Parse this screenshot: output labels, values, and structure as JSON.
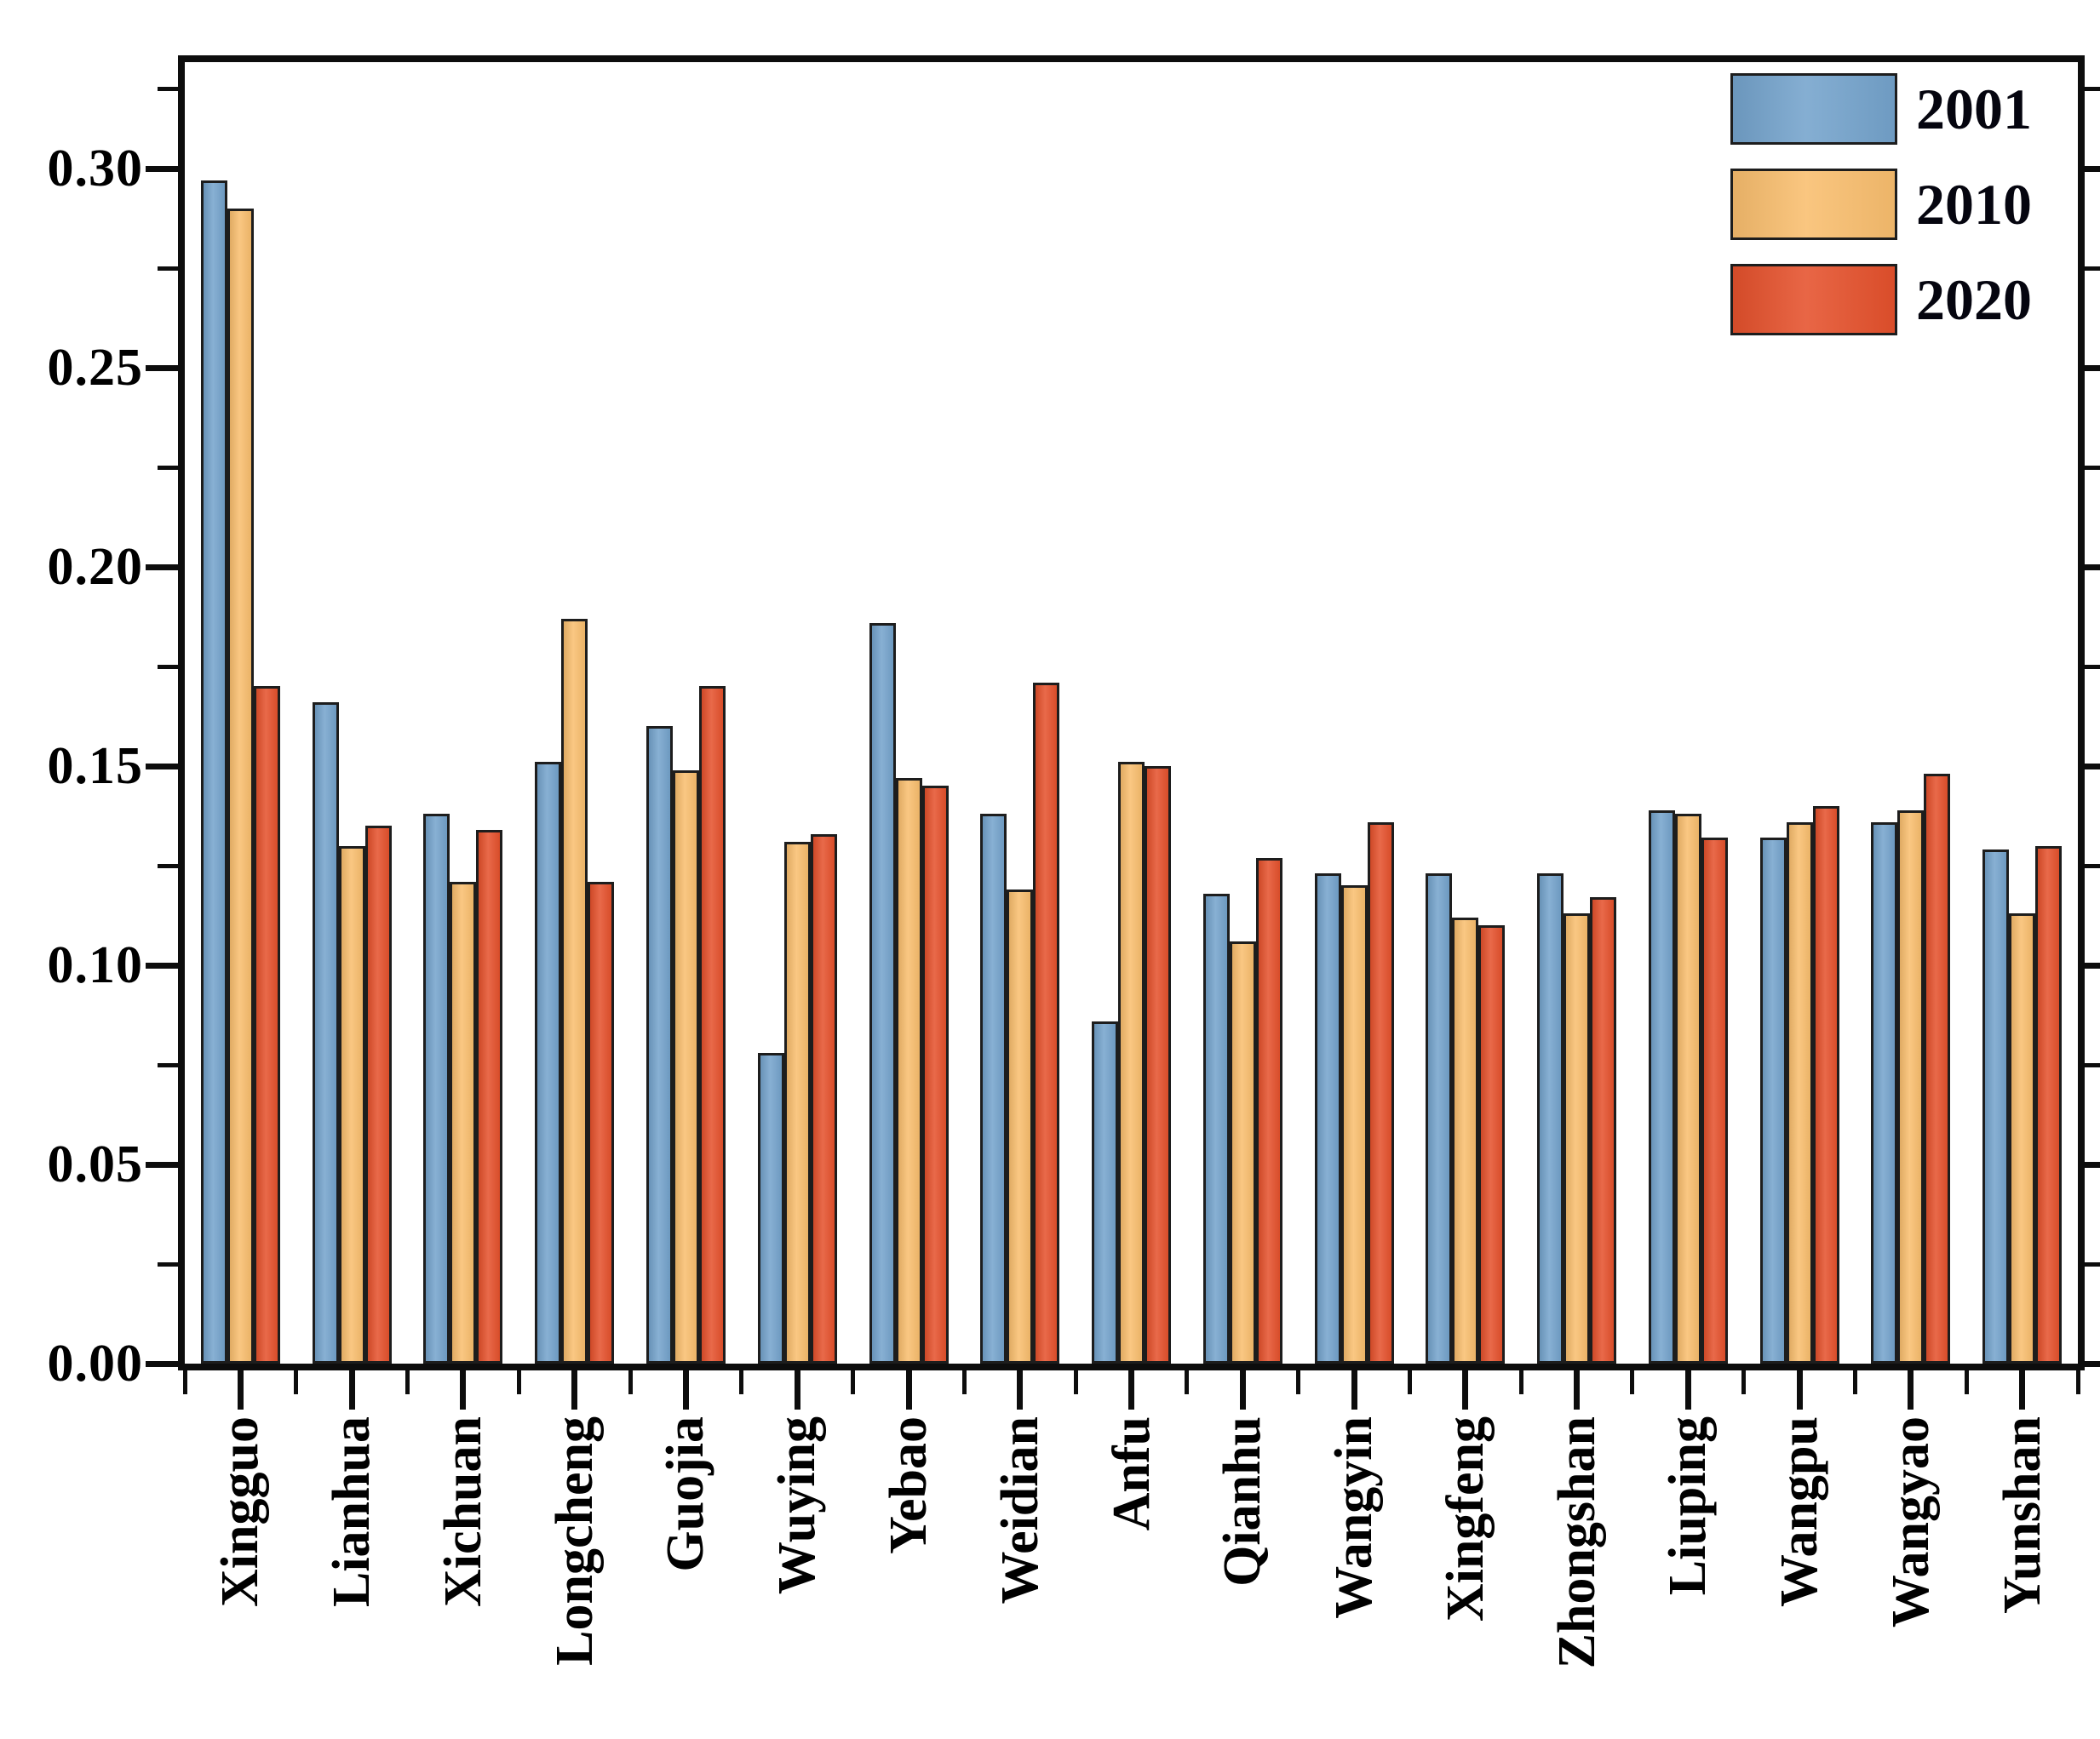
{
  "chart_data": {
    "type": "bar",
    "title": "",
    "xlabel": "",
    "ylabel": "",
    "categories": [
      "Xingguo",
      "Lianhua",
      "Xichuan",
      "Longcheng",
      "Guojia",
      "Wuying",
      "Yebao",
      "Weidian",
      "Anfu",
      "Qianhu",
      "Wangyin",
      "Xingfeng",
      "Zhongshan",
      "Liuping",
      "Wangpu",
      "Wangyao",
      "Yunshan"
    ],
    "series": [
      {
        "name": "2001",
        "color": "#74A3CC",
        "values": [
          0.297,
          0.166,
          0.138,
          0.151,
          0.16,
          0.078,
          0.186,
          0.138,
          0.086,
          0.118,
          0.123,
          0.123,
          0.123,
          0.139,
          0.132,
          0.136,
          0.129
        ]
      },
      {
        "name": "2010",
        "color": "#F9BE6E",
        "values": [
          0.29,
          0.13,
          0.121,
          0.187,
          0.149,
          0.131,
          0.147,
          0.119,
          0.151,
          0.106,
          0.12,
          0.112,
          0.113,
          0.138,
          0.136,
          0.139,
          0.113
        ]
      },
      {
        "name": "2020",
        "color": "#E5512C",
        "values": [
          0.17,
          0.135,
          0.134,
          0.121,
          0.17,
          0.133,
          0.145,
          0.171,
          0.15,
          0.127,
          0.136,
          0.11,
          0.117,
          0.132,
          0.14,
          0.148,
          0.13
        ]
      }
    ],
    "ylim": [
      0,
      0.3267
    ],
    "y_major_tick_labels": [
      "0.00",
      "0.05",
      "0.10",
      "0.15",
      "0.20",
      "0.25",
      "0.30"
    ],
    "y_major_tick_values": [
      0.0,
      0.05,
      0.1,
      0.15,
      0.2,
      0.25,
      0.3
    ],
    "y_minor_tick_values": [
      0.025,
      0.075,
      0.125,
      0.175,
      0.225,
      0.275,
      0.32
    ],
    "grid": false,
    "legend_position": "top-right",
    "bar_edge_color": "#1d1d1d",
    "axis_color": "#0d0d0d",
    "text_color": "#000000"
  }
}
